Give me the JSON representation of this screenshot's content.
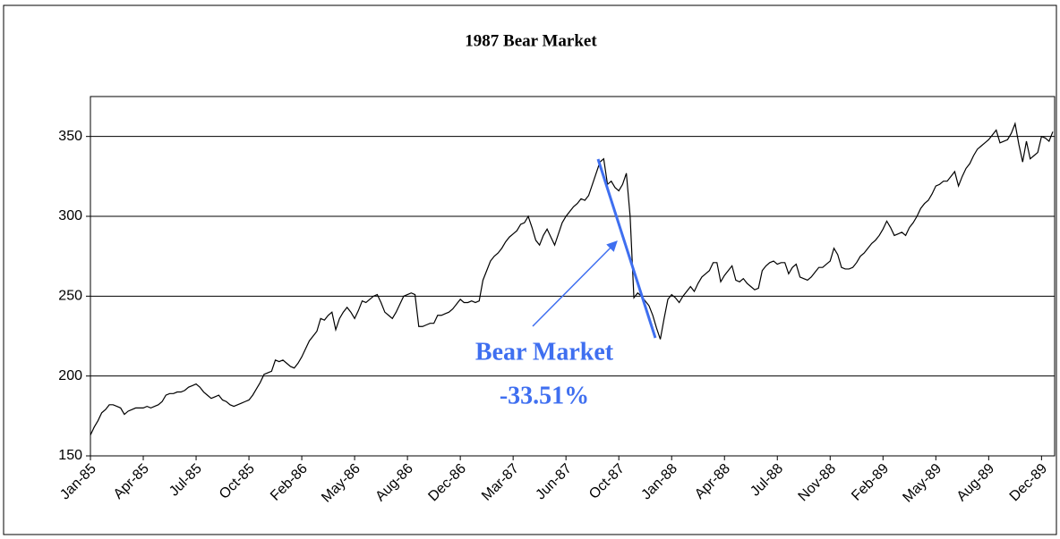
{
  "chart_data": {
    "type": "line",
    "title": "1987 Bear Market",
    "categories": [
      "Jan-85",
      null,
      null,
      null,
      null,
      null,
      null,
      null,
      null,
      null,
      null,
      null,
      null,
      null,
      "Apr-85",
      null,
      null,
      null,
      null,
      null,
      null,
      null,
      null,
      null,
      null,
      null,
      null,
      null,
      "Jul-85",
      null,
      null,
      null,
      null,
      null,
      null,
      null,
      null,
      null,
      null,
      null,
      null,
      null,
      "Oct-85",
      null,
      null,
      null,
      null,
      null,
      null,
      null,
      null,
      null,
      null,
      null,
      null,
      null,
      "Feb-86",
      null,
      null,
      null,
      null,
      null,
      null,
      null,
      null,
      null,
      null,
      null,
      null,
      null,
      "May-86",
      null,
      null,
      null,
      null,
      null,
      null,
      null,
      null,
      null,
      null,
      null,
      null,
      null,
      "Aug-86",
      null,
      null,
      null,
      null,
      null,
      null,
      null,
      null,
      null,
      null,
      null,
      null,
      null,
      "Dec-86",
      null,
      null,
      null,
      null,
      null,
      null,
      null,
      null,
      null,
      null,
      null,
      null,
      null,
      "Mar-87",
      null,
      null,
      null,
      null,
      null,
      null,
      null,
      null,
      null,
      null,
      null,
      null,
      null,
      "Jun-87",
      null,
      null,
      null,
      null,
      null,
      null,
      null,
      null,
      null,
      null,
      null,
      null,
      null,
      "Oct-87",
      null,
      null,
      null,
      null,
      null,
      null,
      null,
      null,
      null,
      null,
      null,
      null,
      null,
      "Jan-88",
      null,
      null,
      null,
      null,
      null,
      null,
      null,
      null,
      null,
      null,
      null,
      null,
      null,
      "Apr-88",
      null,
      null,
      null,
      null,
      null,
      null,
      null,
      null,
      null,
      null,
      null,
      null,
      null,
      "Jul-88",
      null,
      null,
      null,
      null,
      null,
      null,
      null,
      null,
      null,
      null,
      null,
      null,
      null,
      "Nov-88",
      null,
      null,
      null,
      null,
      null,
      null,
      null,
      null,
      null,
      null,
      null,
      null,
      null,
      "Feb-89",
      null,
      null,
      null,
      null,
      null,
      null,
      null,
      null,
      null,
      null,
      null,
      null,
      null,
      "May-89",
      null,
      null,
      null,
      null,
      null,
      null,
      null,
      null,
      null,
      null,
      null,
      null,
      null,
      "Aug-89",
      null,
      null,
      null,
      null,
      null,
      null,
      null,
      null,
      null,
      null,
      null,
      null,
      null,
      "Dec-89",
      null,
      null,
      null
    ],
    "values": [
      163,
      168,
      172,
      177,
      179,
      182,
      182,
      181,
      180,
      176,
      178,
      179,
      180,
      180,
      180,
      181,
      180,
      181,
      182,
      184,
      188,
      189,
      189,
      190,
      190,
      191,
      193,
      194,
      195,
      193,
      190,
      188,
      186,
      187,
      188,
      185,
      184,
      182,
      181,
      182,
      183,
      184,
      185,
      188,
      192,
      196,
      201,
      202,
      203,
      210,
      209,
      210,
      208,
      206,
      205,
      208,
      212,
      217,
      222,
      225,
      228,
      236,
      235,
      238,
      240,
      229,
      236,
      240,
      243,
      240,
      236,
      241,
      247,
      246,
      248,
      250,
      251,
      246,
      240,
      238,
      236,
      240,
      245,
      250,
      251,
      252,
      251,
      231,
      231,
      232,
      233,
      233,
      238,
      238,
      239,
      240,
      242,
      245,
      248,
      246,
      246,
      247,
      246,
      247,
      260,
      266,
      272,
      275,
      277,
      280,
      284,
      287,
      289,
      291,
      295,
      296,
      300,
      293,
      285,
      282,
      288,
      292,
      287,
      282,
      289,
      296,
      300,
      303,
      306,
      308,
      311,
      310,
      313,
      320,
      327,
      334,
      336,
      320,
      322,
      318,
      316,
      320,
      327,
      300,
      249,
      252,
      250,
      247,
      244,
      238,
      230,
      223,
      236,
      248,
      251,
      249,
      246,
      250,
      253,
      256,
      253,
      258,
      262,
      264,
      266,
      271,
      271,
      259,
      263,
      266,
      269,
      260,
      259,
      261,
      258,
      256,
      254,
      255,
      266,
      269,
      271,
      272,
      270,
      271,
      271,
      264,
      268,
      270,
      262,
      261,
      260,
      262,
      265,
      268,
      268,
      270,
      272,
      280,
      276,
      268,
      267,
      267,
      268,
      271,
      275,
      277,
      280,
      283,
      285,
      288,
      292,
      297,
      293,
      288,
      289,
      290,
      288,
      293,
      296,
      300,
      305,
      308,
      310,
      314,
      319,
      320,
      322,
      322,
      325,
      328,
      319,
      325,
      330,
      333,
      338,
      342,
      344,
      346,
      348,
      351,
      354,
      346,
      347,
      348,
      352,
      358,
      345,
      334,
      347,
      336,
      338,
      340,
      350,
      349,
      347,
      353
    ],
    "color": "#000000",
    "ylim": [
      150,
      375
    ],
    "yticks": [
      150,
      200,
      250,
      300,
      350
    ],
    "grid": true,
    "annotations": [
      "Bear Market",
      "-33.51%"
    ]
  }
}
